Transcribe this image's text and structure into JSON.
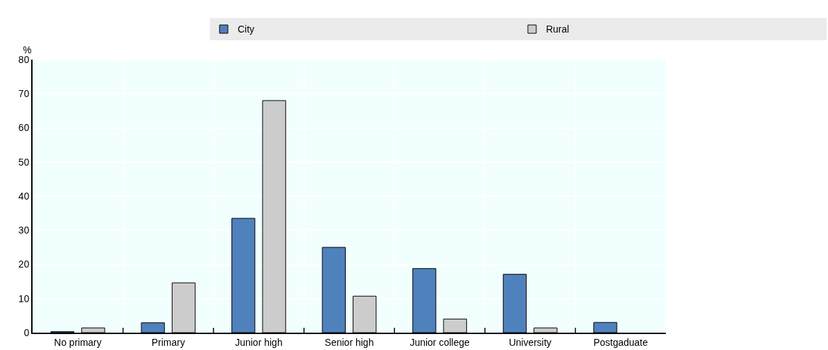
{
  "chart_data": {
    "type": "bar",
    "ylabel": "%",
    "categories": [
      "No primary",
      "Primary",
      "Junior high",
      "Senior high",
      "Junior college",
      "University",
      "Postgaduate"
    ],
    "series": [
      {
        "name": "City",
        "color": "#4f81bd",
        "values": [
          0.3,
          2.9,
          33.5,
          25,
          18.8,
          17.1,
          3
        ]
      },
      {
        "name": "Rural",
        "color": "#cccccc",
        "values": [
          1.4,
          14.6,
          68,
          10.7,
          4,
          1.4,
          null
        ]
      }
    ],
    "ylim": [
      0,
      80
    ],
    "yticks": [
      0,
      10,
      20,
      30,
      40,
      50,
      60,
      70,
      80
    ],
    "grid": true,
    "legend": "top"
  }
}
